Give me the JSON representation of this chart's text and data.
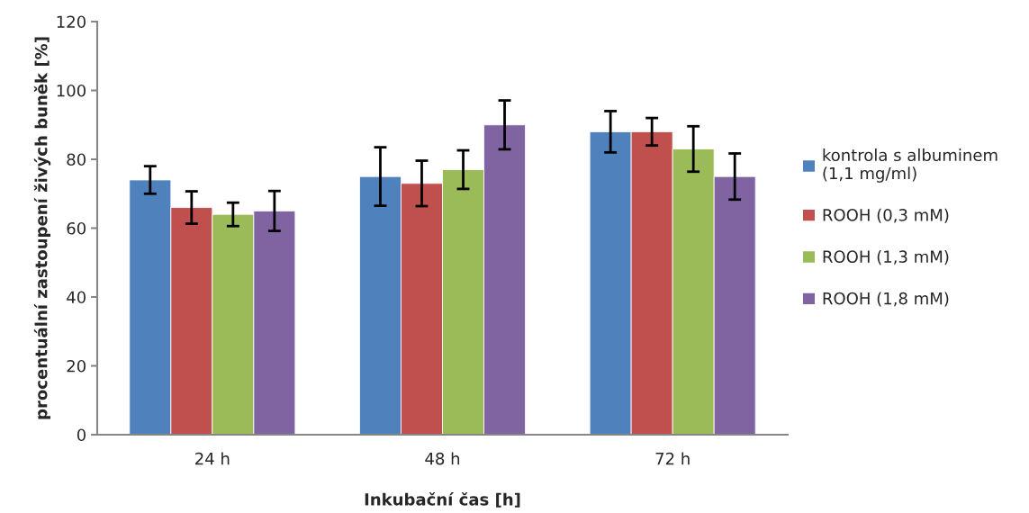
{
  "chart_data": {
    "type": "bar",
    "xlabel": "Inkubační čas [h]",
    "ylabel": "procentuální zastoupení živých buněk [%]",
    "categories": [
      "24 h",
      "48 h",
      "72 h"
    ],
    "series": [
      {
        "name": "kontrola s albuminem\n(1,1 mg/ml)",
        "color": "#4f81bd",
        "values": [
          74,
          75,
          88
        ],
        "errors": [
          4,
          8.5,
          6
        ]
      },
      {
        "name": "ROOH (0,3 mM)",
        "color": "#c0504d",
        "values": [
          66,
          73,
          88
        ],
        "errors": [
          4.7,
          6.6,
          4
        ]
      },
      {
        "name": "ROOH (1,3 mM)",
        "color": "#9bbb59",
        "values": [
          64,
          77,
          83
        ],
        "errors": [
          3.4,
          5.6,
          6.6
        ]
      },
      {
        "name": "ROOH (1,8 mM)",
        "color": "#8064a2",
        "values": [
          65,
          90,
          75
        ],
        "errors": [
          5.8,
          7.1,
          6.7
        ]
      }
    ],
    "ylim": [
      0,
      120
    ],
    "yticks": [
      0,
      20,
      40,
      60,
      80,
      100,
      120
    ],
    "grid": false,
    "legend": "right"
  }
}
